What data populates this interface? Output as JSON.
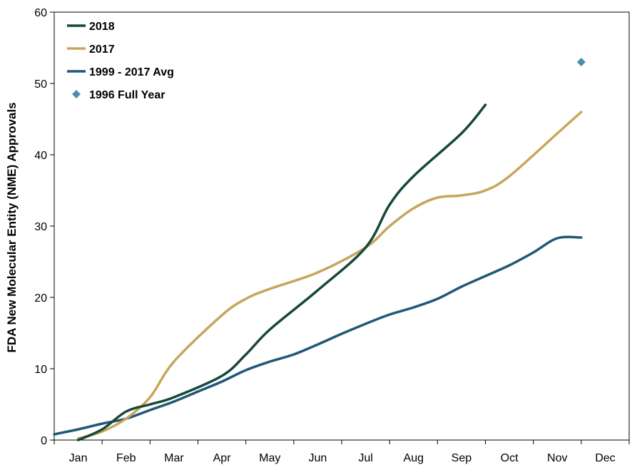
{
  "chart_data": {
    "type": "line",
    "title": "",
    "xlabel": "",
    "ylabel": "FDA New Molecular Entity (NME) Approvals",
    "categories": [
      "Jan",
      "Feb",
      "Mar",
      "Apr",
      "May",
      "Jun",
      "Jul",
      "Aug",
      "Sep",
      "Oct",
      "Nov",
      "Dec"
    ],
    "ylim": [
      0,
      60
    ],
    "yticks": [
      0,
      10,
      20,
      30,
      40,
      50,
      60
    ],
    "grid": false,
    "legend_position": "top-left",
    "series": [
      {
        "name": "2018",
        "color": "#17483a",
        "style": "line",
        "points": [
          [
            0,
            0
          ],
          [
            0.5,
            1.5
          ],
          [
            1,
            4
          ],
          [
            1.5,
            5
          ],
          [
            2,
            6
          ],
          [
            3,
            9
          ],
          [
            3.5,
            12
          ],
          [
            4,
            15.5
          ],
          [
            5,
            21
          ],
          [
            6,
            27
          ],
          [
            6.5,
            33
          ],
          [
            7,
            37
          ],
          [
            8,
            43
          ],
          [
            8.5,
            47
          ]
        ]
      },
      {
        "name": "2017",
        "color": "#c9a55c",
        "style": "line",
        "points": [
          [
            0,
            0.2
          ],
          [
            0.5,
            1.2
          ],
          [
            1,
            3
          ],
          [
            1.5,
            6
          ],
          [
            2,
            11
          ],
          [
            3,
            17.5
          ],
          [
            3.5,
            19.8
          ],
          [
            4,
            21.2
          ],
          [
            5,
            23.5
          ],
          [
            6,
            27
          ],
          [
            6.5,
            30
          ],
          [
            7,
            32.5
          ],
          [
            7.5,
            34
          ],
          [
            8,
            34.3
          ],
          [
            8.5,
            35
          ],
          [
            9,
            37
          ],
          [
            10,
            43
          ],
          [
            10.5,
            46
          ]
        ]
      },
      {
        "name": "1999 - 2017 Avg",
        "color": "#205878",
        "style": "line",
        "points": [
          [
            -0.5,
            0.8
          ],
          [
            0,
            1.5
          ],
          [
            0.5,
            2.3
          ],
          [
            1,
            3
          ],
          [
            1.5,
            4.2
          ],
          [
            2,
            5.4
          ],
          [
            2.5,
            6.8
          ],
          [
            3,
            8.2
          ],
          [
            3.5,
            9.8
          ],
          [
            4,
            11
          ],
          [
            4.5,
            12
          ],
          [
            5,
            13.4
          ],
          [
            5.5,
            14.9
          ],
          [
            6,
            16.3
          ],
          [
            6.5,
            17.6
          ],
          [
            7,
            18.6
          ],
          [
            7.5,
            19.8
          ],
          [
            8,
            21.5
          ],
          [
            8.5,
            23
          ],
          [
            9,
            24.5
          ],
          [
            9.5,
            26.3
          ],
          [
            10,
            28.3
          ],
          [
            10.5,
            28.4
          ]
        ]
      },
      {
        "name": "1996 Full Year",
        "color": "#4c8dad",
        "style": "marker",
        "points": [
          [
            10.5,
            53
          ]
        ]
      }
    ]
  }
}
